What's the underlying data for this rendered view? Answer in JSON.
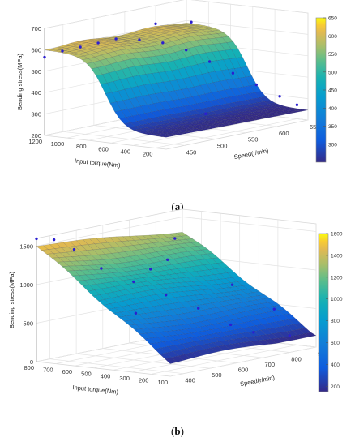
{
  "chart_data": [
    {
      "type": "surface3d",
      "panel_label": "a",
      "zlabel": "Bending stress(MPa)",
      "xlabel": "Input torque(Nm)",
      "ylabel": "Speed(r/min)",
      "x_ticks": [
        "1200",
        "1000",
        "800",
        "600",
        "400",
        "200"
      ],
      "y_ticks": [
        "450",
        "500",
        "550",
        "600",
        "650"
      ],
      "z_ticks": [
        "200",
        "300",
        "400",
        "500",
        "600",
        "700"
      ],
      "colorbar_ticks": [
        "300",
        "350",
        "400",
        "450",
        "500",
        "550",
        "600",
        "650"
      ],
      "xlim": [
        100,
        1200
      ],
      "ylim": [
        420,
        650
      ],
      "zlim": [
        200,
        700
      ],
      "clim": [
        250,
        650
      ],
      "surface_model": "ridge: stress high (~600 MPa) at large torque, dropping steeply to ~250 MPa at low torque; weak dependence on speed",
      "sample_points": [
        {
          "x": 1200,
          "y": 420,
          "z": 560
        },
        {
          "x": 1150,
          "y": 440,
          "z": 580
        },
        {
          "x": 1100,
          "y": 460,
          "z": 590
        },
        {
          "x": 1050,
          "y": 480,
          "z": 600
        },
        {
          "x": 1000,
          "y": 500,
          "z": 610
        },
        {
          "x": 900,
          "y": 520,
          "z": 600
        },
        {
          "x": 800,
          "y": 540,
          "z": 580
        },
        {
          "x": 700,
          "y": 560,
          "z": 540
        },
        {
          "x": 600,
          "y": 580,
          "z": 480
        },
        {
          "x": 500,
          "y": 600,
          "z": 420
        },
        {
          "x": 400,
          "y": 620,
          "z": 360
        },
        {
          "x": 300,
          "y": 640,
          "z": 300
        },
        {
          "x": 200,
          "y": 650,
          "z": 260
        },
        {
          "x": 300,
          "y": 520,
          "z": 290
        },
        {
          "x": 1200,
          "y": 600,
          "z": 610
        },
        {
          "x": 1100,
          "y": 640,
          "z": 600
        }
      ]
    },
    {
      "type": "surface3d",
      "panel_label": "b",
      "zlabel": "Bending stress(MPa)",
      "xlabel": "Input torque(Nm)",
      "ylabel": "Speed(r/min)",
      "x_ticks": [
        "800",
        "700",
        "600",
        "500",
        "400",
        "300",
        "200",
        "100"
      ],
      "y_ticks": [
        "400",
        "500",
        "600",
        "700",
        "800",
        "900"
      ],
      "z_ticks": [
        "0",
        "500",
        "1000",
        "1500"
      ],
      "colorbar_ticks": [
        "200",
        "400",
        "600",
        "800",
        "1000",
        "1200",
        "1400",
        "1600"
      ],
      "xlim": [
        100,
        800
      ],
      "ylim": [
        350,
        900
      ],
      "zlim": [
        0,
        1600
      ],
      "clim": [
        150,
        1600
      ],
      "surface_model": "stress increases almost linearly with torque (~200 MPa at 100 Nm to ~1550 MPa at 800 Nm), decreasing mildly with speed",
      "sample_points": [
        {
          "x": 800,
          "y": 350,
          "z": 1580
        },
        {
          "x": 750,
          "y": 380,
          "z": 1560
        },
        {
          "x": 700,
          "y": 420,
          "z": 1420
        },
        {
          "x": 600,
          "y": 450,
          "z": 1180
        },
        {
          "x": 500,
          "y": 500,
          "z": 1000
        },
        {
          "x": 400,
          "y": 550,
          "z": 820
        },
        {
          "x": 300,
          "y": 600,
          "z": 640
        },
        {
          "x": 200,
          "y": 650,
          "z": 420
        },
        {
          "x": 150,
          "y": 700,
          "z": 300
        },
        {
          "x": 100,
          "y": 800,
          "z": 200
        },
        {
          "x": 700,
          "y": 800,
          "z": 1300
        },
        {
          "x": 600,
          "y": 700,
          "z": 1120
        },
        {
          "x": 400,
          "y": 800,
          "z": 780
        },
        {
          "x": 250,
          "y": 850,
          "z": 470
        },
        {
          "x": 550,
          "y": 600,
          "z": 1080
        },
        {
          "x": 350,
          "y": 400,
          "z": 700
        }
      ]
    }
  ]
}
